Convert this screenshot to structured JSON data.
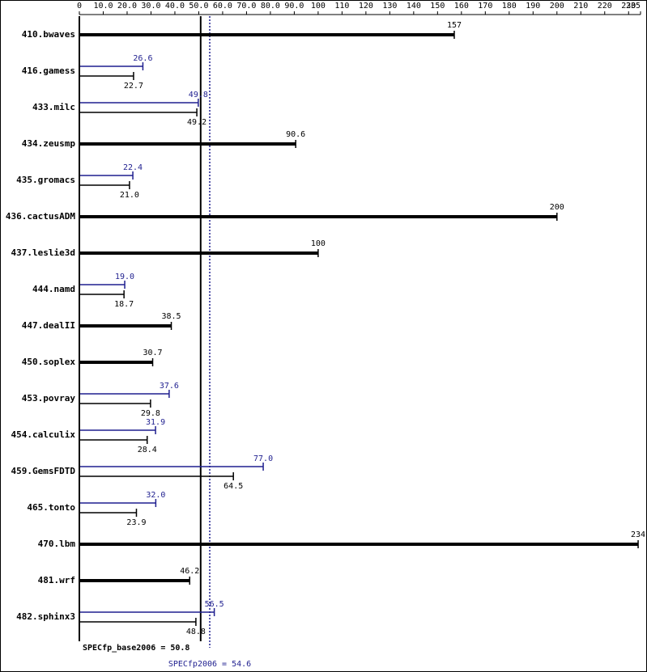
{
  "chart_data": {
    "type": "bar",
    "orientation": "horizontal",
    "categories": [
      "410.bwaves",
      "416.gamess",
      "433.milc",
      "434.zeusmp",
      "435.gromacs",
      "436.cactusADM",
      "437.leslie3d",
      "444.namd",
      "447.dealII",
      "450.soplex",
      "453.povray",
      "454.calculix",
      "459.GemsFDTD",
      "465.tonto",
      "470.lbm",
      "481.wrf",
      "482.sphinx3"
    ],
    "series": [
      {
        "color": "#1f1f8f",
        "values": [
          null,
          26.6,
          49.8,
          null,
          22.4,
          null,
          null,
          19.0,
          null,
          null,
          37.6,
          31.9,
          77.0,
          32.0,
          null,
          null,
          56.5
        ],
        "value_labels": [
          null,
          "26.6",
          "49.8",
          null,
          "22.4",
          null,
          null,
          "19.0",
          null,
          null,
          "37.6",
          "31.9",
          "77.0",
          "32.0",
          null,
          null,
          "56.5"
        ]
      },
      {
        "color": "#000000",
        "values": [
          157,
          22.7,
          49.2,
          90.6,
          21.0,
          200,
          100,
          18.7,
          38.5,
          30.7,
          29.8,
          28.4,
          64.5,
          23.9,
          234,
          46.2,
          48.8
        ],
        "value_labels": [
          "157",
          "22.7",
          "49.2",
          "90.6",
          "21.0",
          "200",
          "100",
          "18.7",
          "38.5",
          "30.7",
          "29.8",
          "28.4",
          "64.5",
          "23.9",
          "234",
          "46.2",
          "48.8"
        ]
      }
    ],
    "xlim": [
      0,
      235
    ],
    "xticks": [
      0,
      {
        "value": 10,
        "label": "10.0"
      },
      {
        "value": 20,
        "label": "20.0"
      },
      {
        "value": 30,
        "label": "30.0"
      },
      {
        "value": 40,
        "label": "40.0"
      },
      {
        "value": 50,
        "label": "50.0"
      },
      {
        "value": 60,
        "label": "60.0"
      },
      {
        "value": 70,
        "label": "70.0"
      },
      {
        "value": 80,
        "label": "80.0"
      },
      {
        "value": 90,
        "label": "90.0"
      },
      100,
      110,
      120,
      130,
      140,
      150,
      160,
      170,
      180,
      190,
      200,
      210,
      220,
      230,
      235
    ],
    "reference_lines": [
      {
        "label": "SPECfp_base2006 = 50.8",
        "value": 50.8,
        "color": "#000000"
      },
      {
        "label": "SPECfp2006 = 54.6",
        "value": 54.6,
        "color": "#1f1f8f"
      }
    ]
  }
}
